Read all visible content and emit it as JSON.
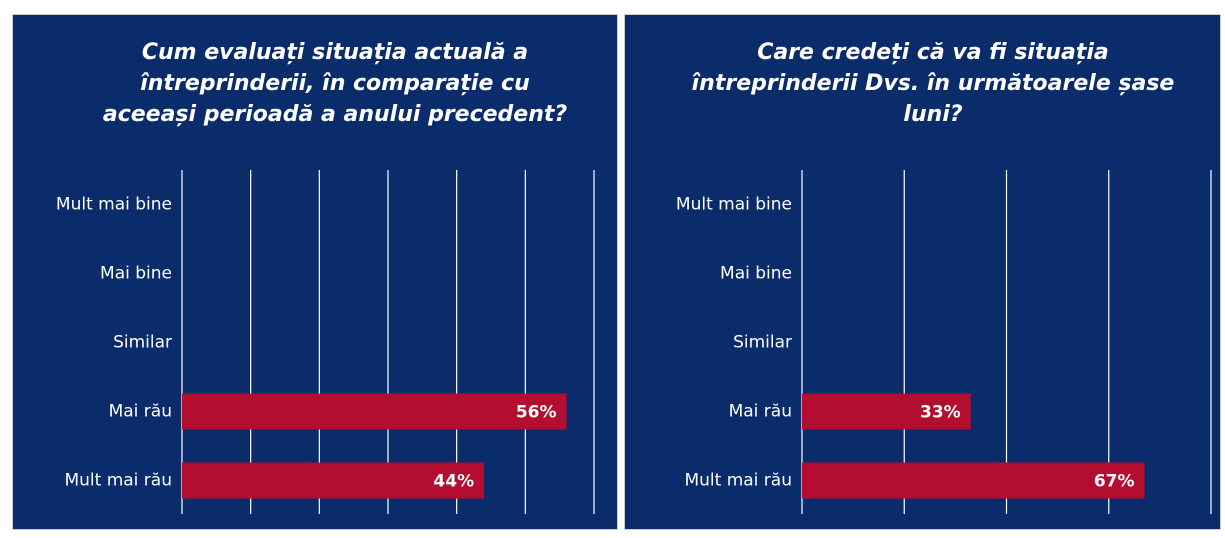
{
  "chart_data": [
    {
      "type": "bar",
      "orientation": "horizontal",
      "title": "Cum evaluați situația actuală a întreprinderii, în comparație cu aceeași perioadă a anului precedent?",
      "categories": [
        "Mult mai bine",
        "Mai bine",
        "Similar",
        "Mai rău",
        "Mult mai rău"
      ],
      "values": [
        null,
        null,
        null,
        56,
        44
      ],
      "value_labels": [
        null,
        null,
        null,
        "56%",
        "44%"
      ],
      "color": "#b30d2f",
      "xlim": [
        0,
        60
      ],
      "xticks": [
        0,
        10,
        20,
        30,
        40,
        50,
        60
      ],
      "grid": true
    },
    {
      "type": "bar",
      "orientation": "horizontal",
      "title": "Care credeți că va fi situația întreprinderii Dvs. în următoarele șase luni?",
      "categories": [
        "Mult mai bine",
        "Mai bine",
        "Similar",
        "Mai rău",
        "Mult mai rău"
      ],
      "values": [
        null,
        null,
        null,
        33,
        67
      ],
      "value_labels": [
        null,
        null,
        null,
        "33%",
        "67%"
      ],
      "color": "#b30d2f",
      "xlim": [
        0,
        80
      ],
      "xticks": [
        0,
        20,
        40,
        60,
        80
      ],
      "grid": true
    }
  ]
}
